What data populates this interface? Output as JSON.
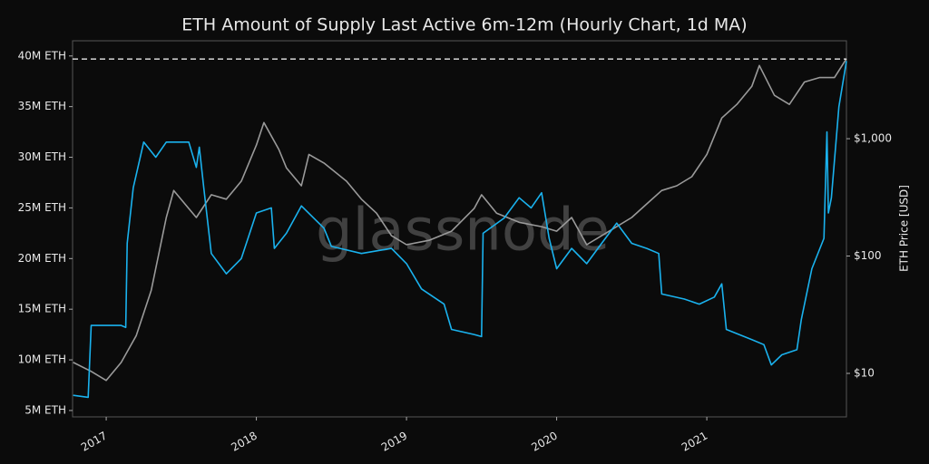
{
  "chart_data": {
    "type": "line",
    "title": "ETH Amount of Supply Last Active 6m-12m (Hourly Chart, 1d MA)",
    "watermark": "glassnode",
    "y2_label": "ETH Price [USD]",
    "xlim": [
      2016.776,
      2021.93
    ],
    "xticks": [
      2017,
      2018,
      2019,
      2020,
      2021
    ],
    "ylim": [
      4370000,
      41500000
    ],
    "yticks": [
      {
        "value": 5000000,
        "label": "5M ETH"
      },
      {
        "value": 10000000,
        "label": "10M ETH"
      },
      {
        "value": 15000000,
        "label": "15M ETH"
      },
      {
        "value": 20000000,
        "label": "20M ETH"
      },
      {
        "value": 25000000,
        "label": "25M ETH"
      },
      {
        "value": 30000000,
        "label": "30M ETH"
      },
      {
        "value": 35000000,
        "label": "35M ETH"
      },
      {
        "value": 40000000,
        "label": "40M ETH"
      }
    ],
    "y2lim": [
      4.26,
      6830
    ],
    "y2_log": true,
    "y2ticks": [
      {
        "value": 10,
        "label": "$10"
      },
      {
        "value": 100,
        "label": "$100"
      },
      {
        "value": 1000,
        "label": "$1,000"
      }
    ],
    "reference_line": 39700000,
    "series": [
      {
        "color": "#1ab2ee",
        "x": [
          2016.78,
          2016.88,
          2016.9,
          2017.1,
          2017.13,
          2017.14,
          2017.18,
          2017.25,
          2017.33,
          2017.4,
          2017.55,
          2017.6,
          2017.62,
          2017.65,
          2017.7,
          2017.8,
          2017.9,
          2018.0,
          2018.1,
          2018.12,
          2018.2,
          2018.3,
          2018.45,
          2018.5,
          2018.7,
          2018.9,
          2019.0,
          2019.1,
          2019.25,
          2019.3,
          2019.45,
          2019.5,
          2019.51,
          2019.65,
          2019.75,
          2019.83,
          2019.9,
          2019.95,
          2020.0,
          2020.1,
          2020.2,
          2020.3,
          2020.4,
          2020.5,
          2020.6,
          2020.68,
          2020.7,
          2020.85,
          2020.95,
          2021.05,
          2021.1,
          2021.13,
          2021.3,
          2021.38,
          2021.43,
          2021.5,
          2021.6,
          2021.63,
          2021.7,
          2021.78,
          2021.8,
          2021.81,
          2021.83,
          2021.88,
          2021.93
        ],
        "values": [
          6500000,
          6300000,
          13400000,
          13400000,
          13200000,
          21500000,
          27000000,
          31500000,
          30000000,
          31500000,
          31500000,
          29000000,
          31000000,
          27000000,
          20500000,
          18500000,
          20000000,
          24500000,
          25000000,
          21000000,
          22500000,
          25200000,
          23000000,
          21200000,
          20500000,
          21000000,
          19500000,
          17000000,
          15500000,
          13000000,
          12500000,
          12300000,
          22500000,
          24000000,
          26000000,
          25000000,
          26500000,
          22000000,
          19000000,
          21000000,
          19500000,
          21500000,
          23500000,
          21500000,
          21000000,
          20500000,
          16500000,
          16000000,
          15500000,
          16200000,
          17500000,
          13000000,
          12000000,
          11500000,
          9500000,
          10500000,
          11000000,
          14000000,
          19000000,
          22000000,
          32500000,
          24500000,
          26000000,
          35000000,
          39500000
        ]
      },
      {
        "color": "#9a9a9a",
        "axis": "y2",
        "x": [
          2016.78,
          2016.9,
          2017.0,
          2017.1,
          2017.2,
          2017.3,
          2017.4,
          2017.45,
          2017.55,
          2017.6,
          2017.7,
          2017.8,
          2017.9,
          2018.0,
          2018.05,
          2018.15,
          2018.2,
          2018.3,
          2018.35,
          2018.45,
          2018.6,
          2018.7,
          2018.8,
          2018.9,
          2019.0,
          2019.15,
          2019.3,
          2019.45,
          2019.5,
          2019.6,
          2019.75,
          2019.9,
          2020.0,
          2020.1,
          2020.2,
          2020.35,
          2020.5,
          2020.6,
          2020.7,
          2020.8,
          2020.9,
          2021.0,
          2021.1,
          2021.2,
          2021.3,
          2021.35,
          2021.45,
          2021.55,
          2021.65,
          2021.75,
          2021.85,
          2021.93
        ],
        "values": [
          12.4,
          10.4,
          8.7,
          12.4,
          21,
          51,
          213,
          362,
          254,
          213,
          333,
          305,
          435,
          882,
          1370,
          808,
          565,
          397,
          735,
          620,
          435,
          305,
          232,
          149,
          125,
          136,
          163,
          254,
          333,
          232,
          194,
          178,
          163,
          213,
          125,
          163,
          213,
          278,
          362,
          397,
          474,
          735,
          1500,
          1960,
          2790,
          4200,
          2340,
          1960,
          3040,
          3320,
          3320,
          4800
        ]
      }
    ]
  }
}
